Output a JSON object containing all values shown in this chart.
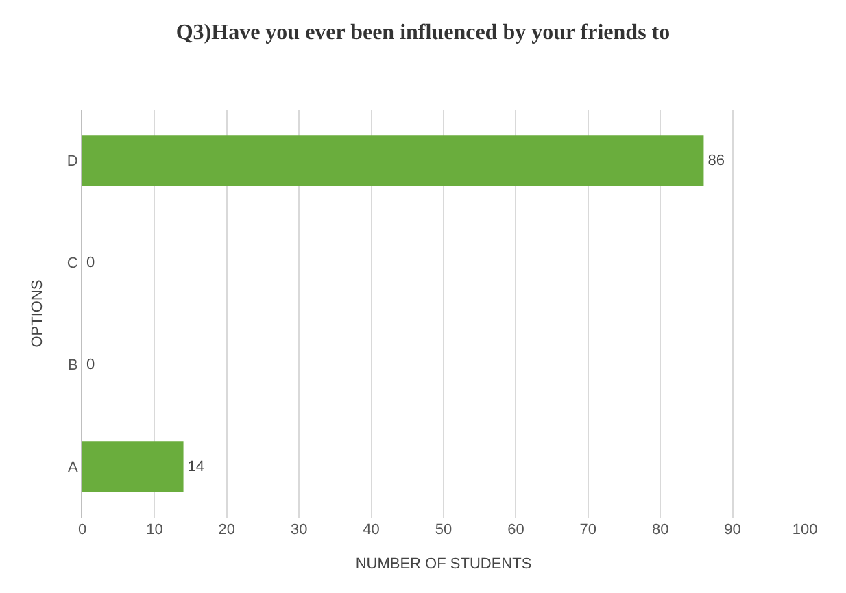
{
  "chart_data": {
    "type": "bar",
    "orientation": "horizontal",
    "title": "Q3)Have you ever been influenced by your friends to",
    "xlabel": "NUMBER OF STUDENTS",
    "ylabel": "OPTIONS",
    "categories": [
      "D",
      "C",
      "B",
      "A"
    ],
    "values": [
      86,
      0,
      0,
      14
    ],
    "color": "#6aad3d",
    "xlim": [
      0,
      100
    ],
    "xticks": [
      0,
      10,
      20,
      30,
      40,
      50,
      60,
      70,
      80,
      90,
      100
    ],
    "grid": "x",
    "data_labels": true
  }
}
